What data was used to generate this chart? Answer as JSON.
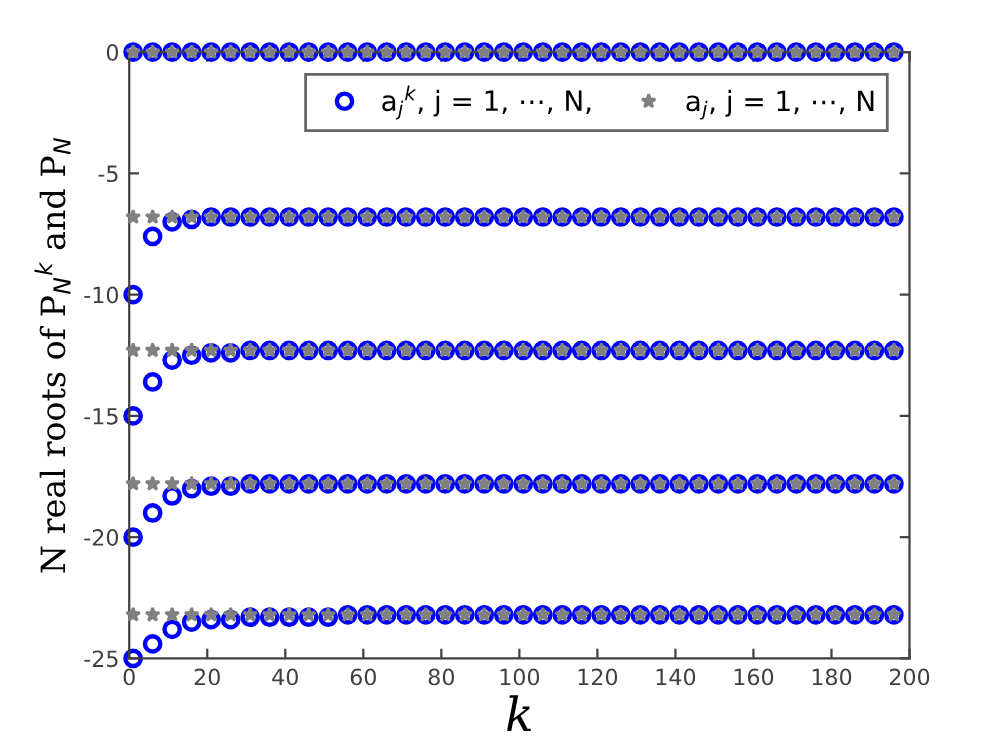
{
  "chart_data": {
    "type": "scatter",
    "xlabel": "k",
    "ylabel": "N real roots of P$_{N}$$^{k}$ and P$_{N}$",
    "x": [
      1,
      6,
      11,
      16,
      21,
      26,
      31,
      36,
      41,
      46,
      51,
      56,
      61,
      66,
      71,
      76,
      81,
      86,
      91,
      96,
      101,
      106,
      111,
      116,
      121,
      126,
      131,
      136,
      141,
      146,
      151,
      156,
      161,
      166,
      171,
      176,
      181,
      186,
      191,
      196
    ],
    "series": [
      {
        "name": "a$_{j}$$^{k}$, j = 1, ⋯, N,",
        "color": "#0000ff",
        "marker": "circle",
        "values": [
          0,
          0,
          0,
          0,
          0,
          0,
          0,
          0,
          0,
          0,
          0,
          0,
          0,
          0,
          0,
          0,
          0,
          0,
          0,
          0,
          0,
          0,
          0,
          0,
          0,
          0,
          0,
          0,
          0,
          0,
          0,
          0,
          0,
          0,
          0,
          0,
          0,
          0,
          0,
          0
        ]
      },
      {
        "color": "#0000ff",
        "marker": "circle",
        "values": [
          -10,
          -7.6,
          -7.0,
          -6.9,
          -6.8,
          -6.8,
          -6.8,
          -6.8,
          -6.8,
          -6.8,
          -6.8,
          -6.8,
          -6.8,
          -6.8,
          -6.8,
          -6.8,
          -6.8,
          -6.8,
          -6.8,
          -6.8,
          -6.8,
          -6.8,
          -6.8,
          -6.8,
          -6.8,
          -6.8,
          -6.8,
          -6.8,
          -6.8,
          -6.8,
          -6.8,
          -6.8,
          -6.8,
          -6.8,
          -6.8,
          -6.8,
          -6.8,
          -6.8,
          -6.8,
          -6.8
        ]
      },
      {
        "color": "#0000ff",
        "marker": "circle",
        "values": [
          -15,
          -13.6,
          -12.7,
          -12.5,
          -12.4,
          -12.4,
          -12.3,
          -12.3,
          -12.3,
          -12.3,
          -12.3,
          -12.3,
          -12.3,
          -12.3,
          -12.3,
          -12.3,
          -12.3,
          -12.3,
          -12.3,
          -12.3,
          -12.3,
          -12.3,
          -12.3,
          -12.3,
          -12.3,
          -12.3,
          -12.3,
          -12.3,
          -12.3,
          -12.3,
          -12.3,
          -12.3,
          -12.3,
          -12.3,
          -12.3,
          -12.3,
          -12.3,
          -12.3,
          -12.3,
          -12.3
        ]
      },
      {
        "color": "#0000ff",
        "marker": "circle",
        "values": [
          -20,
          -19.0,
          -18.3,
          -18.0,
          -17.9,
          -17.9,
          -17.8,
          -17.8,
          -17.8,
          -17.8,
          -17.8,
          -17.8,
          -17.8,
          -17.8,
          -17.8,
          -17.8,
          -17.8,
          -17.8,
          -17.8,
          -17.8,
          -17.8,
          -17.8,
          -17.8,
          -17.8,
          -17.8,
          -17.8,
          -17.8,
          -17.8,
          -17.8,
          -17.8,
          -17.8,
          -17.8,
          -17.8,
          -17.8,
          -17.8,
          -17.8,
          -17.8,
          -17.8,
          -17.8,
          -17.8
        ]
      },
      {
        "color": "#0000ff",
        "marker": "circle",
        "values": [
          -25,
          -24.4,
          -23.8,
          -23.5,
          -23.4,
          -23.4,
          -23.3,
          -23.3,
          -23.3,
          -23.3,
          -23.3,
          -23.2,
          -23.2,
          -23.2,
          -23.2,
          -23.2,
          -23.2,
          -23.2,
          -23.2,
          -23.2,
          -23.2,
          -23.2,
          -23.2,
          -23.2,
          -23.2,
          -23.2,
          -23.2,
          -23.2,
          -23.2,
          -23.2,
          -23.2,
          -23.2,
          -23.2,
          -23.2,
          -23.2,
          -23.2,
          -23.2,
          -23.2,
          -23.2,
          -23.2
        ]
      },
      {
        "name": "a$_{j}$, j = 1, ⋯, N",
        "color": "#808080",
        "marker": "star",
        "values": [
          0,
          0,
          0,
          0,
          0,
          0,
          0,
          0,
          0,
          0,
          0,
          0,
          0,
          0,
          0,
          0,
          0,
          0,
          0,
          0,
          0,
          0,
          0,
          0,
          0,
          0,
          0,
          0,
          0,
          0,
          0,
          0,
          0,
          0,
          0,
          0,
          0,
          0,
          0,
          0
        ]
      },
      {
        "color": "#808080",
        "marker": "star",
        "values": [
          -6.8,
          -6.8,
          -6.8,
          -6.8,
          -6.8,
          -6.8,
          -6.8,
          -6.8,
          -6.8,
          -6.8,
          -6.8,
          -6.8,
          -6.8,
          -6.8,
          -6.8,
          -6.8,
          -6.8,
          -6.8,
          -6.8,
          -6.8,
          -6.8,
          -6.8,
          -6.8,
          -6.8,
          -6.8,
          -6.8,
          -6.8,
          -6.8,
          -6.8,
          -6.8,
          -6.8,
          -6.8,
          -6.8,
          -6.8,
          -6.8,
          -6.8,
          -6.8,
          -6.8,
          -6.8,
          -6.8
        ]
      },
      {
        "color": "#808080",
        "marker": "star",
        "values": [
          -12.3,
          -12.3,
          -12.3,
          -12.3,
          -12.3,
          -12.3,
          -12.3,
          -12.3,
          -12.3,
          -12.3,
          -12.3,
          -12.3,
          -12.3,
          -12.3,
          -12.3,
          -12.3,
          -12.3,
          -12.3,
          -12.3,
          -12.3,
          -12.3,
          -12.3,
          -12.3,
          -12.3,
          -12.3,
          -12.3,
          -12.3,
          -12.3,
          -12.3,
          -12.3,
          -12.3,
          -12.3,
          -12.3,
          -12.3,
          -12.3,
          -12.3,
          -12.3,
          -12.3,
          -12.3,
          -12.3
        ]
      },
      {
        "color": "#808080",
        "marker": "star",
        "values": [
          -17.8,
          -17.8,
          -17.8,
          -17.8,
          -17.8,
          -17.8,
          -17.8,
          -17.8,
          -17.8,
          -17.8,
          -17.8,
          -17.8,
          -17.8,
          -17.8,
          -17.8,
          -17.8,
          -17.8,
          -17.8,
          -17.8,
          -17.8,
          -17.8,
          -17.8,
          -17.8,
          -17.8,
          -17.8,
          -17.8,
          -17.8,
          -17.8,
          -17.8,
          -17.8,
          -17.8,
          -17.8,
          -17.8,
          -17.8,
          -17.8,
          -17.8,
          -17.8,
          -17.8,
          -17.8,
          -17.8
        ]
      },
      {
        "color": "#808080",
        "marker": "star",
        "values": [
          -23.2,
          -23.2,
          -23.2,
          -23.2,
          -23.2,
          -23.2,
          -23.2,
          -23.2,
          -23.2,
          -23.2,
          -23.2,
          -23.2,
          -23.2,
          -23.2,
          -23.2,
          -23.2,
          -23.2,
          -23.2,
          -23.2,
          -23.2,
          -23.2,
          -23.2,
          -23.2,
          -23.2,
          -23.2,
          -23.2,
          -23.2,
          -23.2,
          -23.2,
          -23.2,
          -23.2,
          -23.2,
          -23.2,
          -23.2,
          -23.2,
          -23.2,
          -23.2,
          -23.2,
          -23.2,
          -23.2
        ]
      }
    ],
    "xlim": [
      0,
      200
    ],
    "xticks": [
      0,
      20,
      40,
      60,
      80,
      100,
      120,
      140,
      160,
      180,
      200
    ],
    "ylim": [
      -25,
      0
    ],
    "yticks": [
      -25,
      -20,
      -15,
      -10,
      -5,
      0
    ],
    "grid": false,
    "legend": "top right"
  }
}
